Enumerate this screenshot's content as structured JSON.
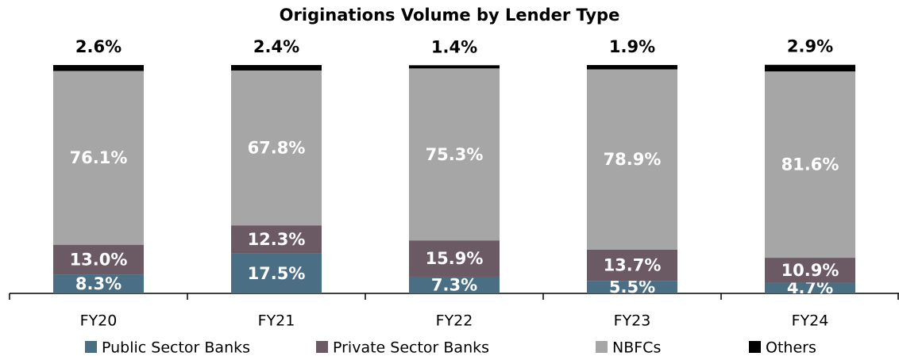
{
  "chart_data": {
    "type": "stacked_bar",
    "title": "Originations Volume by Lender Type",
    "categories": [
      "FY20",
      "FY21",
      "FY22",
      "FY23",
      "FY24"
    ],
    "series": [
      {
        "name": "Public Sector Banks",
        "color": "#4a6f84",
        "values": [
          8.3,
          17.5,
          7.3,
          5.5,
          4.7
        ],
        "value_labels": [
          "8.3%",
          "17.5%",
          "7.3%",
          "5.5%",
          "4.7%"
        ]
      },
      {
        "name": "Private Sector Banks",
        "color": "#6b5a64",
        "values": [
          13.0,
          12.3,
          15.9,
          13.7,
          10.9
        ],
        "value_labels": [
          "13.0%",
          "12.3%",
          "15.9%",
          "13.7%",
          "10.9%"
        ]
      },
      {
        "name": "NBFCs",
        "color": "#a6a6a6",
        "values": [
          76.1,
          67.8,
          75.3,
          78.9,
          81.6
        ],
        "value_labels": [
          "76.1%",
          "67.8%",
          "75.3%",
          "78.9%",
          "81.6%"
        ]
      },
      {
        "name": "Others",
        "color": "#000000",
        "values": [
          2.6,
          2.4,
          1.4,
          1.9,
          2.9
        ],
        "value_labels": [
          "2.6%",
          "2.4%",
          "1.4%",
          "1.9%",
          "2.9%"
        ]
      }
    ]
  }
}
